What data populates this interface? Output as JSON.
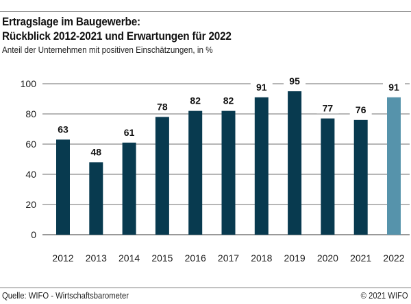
{
  "header": {
    "title_line1": "Ertragslage im Baugewerbe:",
    "title_line2": "Rückblick 2012-2021 und Erwartungen für 2022",
    "subtitle": "Anteil der Unternehmen mit positiven Einschätzungen, in %"
  },
  "footer": {
    "source": "Quelle: WIFO - Wirtschaftsbarometer",
    "copyright": "© 2021 WIFO"
  },
  "colors": {
    "actual": "#083a4f",
    "expectation": "#5693ab",
    "grid": "#6e6e6e"
  },
  "chart_data": {
    "type": "bar",
    "title": "Ertragslage im Baugewerbe: Rückblick 2012-2021 und Erwartungen für 2022",
    "subtitle": "Anteil der Unternehmen mit positiven Einschätzungen, in %",
    "xlabel": "",
    "ylabel": "",
    "categories": [
      "2012",
      "2013",
      "2014",
      "2015",
      "2016",
      "2017",
      "2018",
      "2019",
      "2020",
      "2021",
      "2022"
    ],
    "values": [
      63,
      48,
      61,
      78,
      82,
      82,
      91,
      95,
      77,
      76,
      91
    ],
    "value_labels": [
      "63",
      "48",
      "61",
      "78",
      "82",
      "82",
      "91",
      "95",
      "77",
      "76",
      "91"
    ],
    "highlight": [
      "actual",
      "actual",
      "actual",
      "actual",
      "actual",
      "actual",
      "actual",
      "actual",
      "actual",
      "actual",
      "expectation"
    ],
    "ylim": [
      0,
      100
    ],
    "yticks": [
      0,
      20,
      40,
      60,
      80,
      100
    ],
    "ytick_labels": [
      "0",
      "20",
      "40",
      "60",
      "80",
      "100"
    ],
    "grid": true,
    "legend": "none"
  }
}
